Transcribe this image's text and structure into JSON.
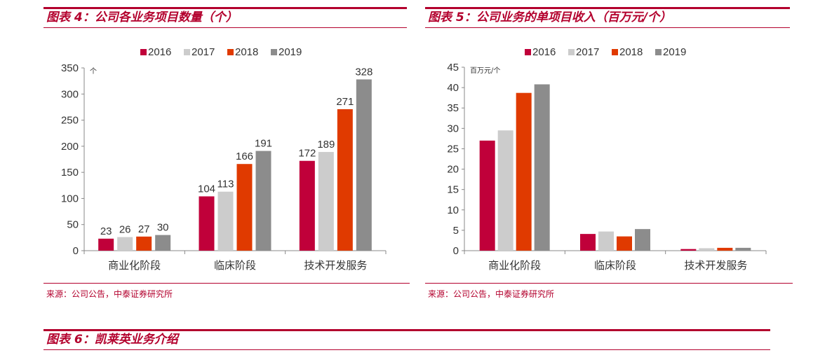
{
  "figures": {
    "fig4_title": "图表 4：公司各业务项目数量（个）",
    "fig5_title": "图表 5：公司业务的单项目收入（百万元/个）",
    "fig6_title": "图表 6：凯莱英业务介绍",
    "source_text": "来源：公司公告，中泰证券研究所"
  },
  "colors": {
    "accent": "#b3002d",
    "2016": "#c0003a",
    "2017": "#cccccc",
    "2018": "#e03a00",
    "2019": "#8c8c8c"
  },
  "chart_data": [
    {
      "type": "bar",
      "title": "图表 4：公司各业务项目数量（个）",
      "unit": "个",
      "categories": [
        "商业化阶段",
        "临床阶段",
        "技术开发服务"
      ],
      "series": [
        {
          "name": "2016",
          "values": [
            23,
            104,
            172
          ]
        },
        {
          "name": "2017",
          "values": [
            26,
            113,
            189
          ]
        },
        {
          "name": "2018",
          "values": [
            27,
            166,
            271
          ]
        },
        {
          "name": "2019",
          "values": [
            30,
            191,
            328
          ]
        }
      ],
      "ylim": [
        0,
        350
      ],
      "yticks": [
        0,
        50,
        100,
        150,
        200,
        250,
        300,
        350
      ],
      "data_labels": true,
      "legend": "top"
    },
    {
      "type": "bar",
      "title": "图表 5：公司业务的单项目收入（百万元/个）",
      "unit": "百万元/个",
      "categories": [
        "商业化阶段",
        "临床阶段",
        "技术开发服务"
      ],
      "series": [
        {
          "name": "2016",
          "values": [
            27.0,
            4.1,
            0.4
          ]
        },
        {
          "name": "2017",
          "values": [
            29.5,
            4.7,
            0.6
          ]
        },
        {
          "name": "2018",
          "values": [
            38.7,
            3.5,
            0.7
          ]
        },
        {
          "name": "2019",
          "values": [
            40.8,
            5.3,
            0.7
          ]
        }
      ],
      "ylim": [
        0,
        45
      ],
      "yticks": [
        0,
        5,
        10,
        15,
        20,
        25,
        30,
        35,
        40,
        45
      ],
      "data_labels": false,
      "legend": "top"
    }
  ]
}
